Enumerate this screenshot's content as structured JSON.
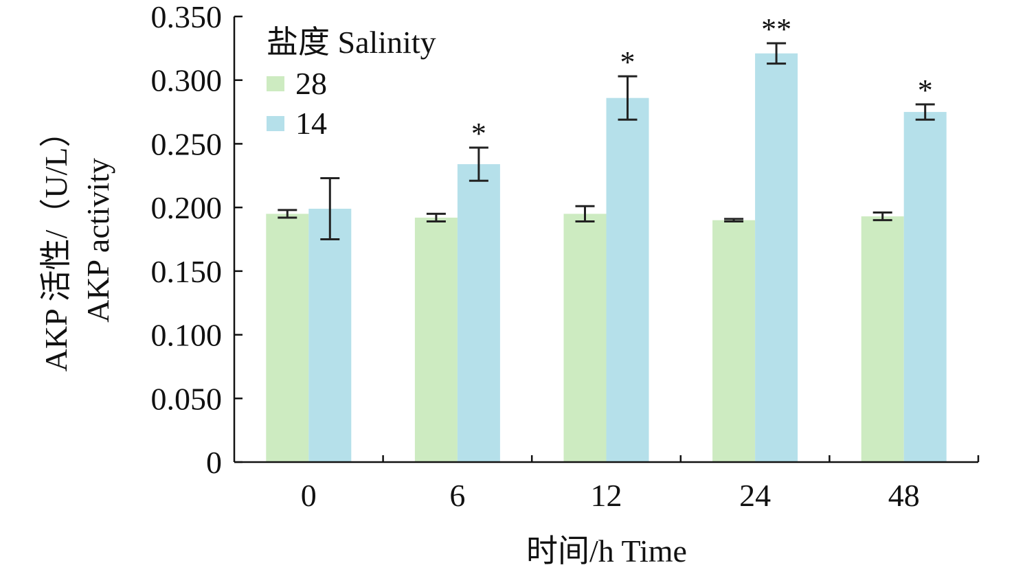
{
  "chart_data": {
    "type": "bar",
    "categories": [
      "0",
      "6",
      "12",
      "24",
      "48"
    ],
    "series": [
      {
        "name": "28",
        "values": [
          0.195,
          0.192,
          0.195,
          0.19,
          0.193
        ],
        "errors": [
          0.003,
          0.003,
          0.006,
          0.001,
          0.003
        ],
        "color": "#cdebc1"
      },
      {
        "name": "14",
        "values": [
          0.199,
          0.234,
          0.286,
          0.321,
          0.275
        ],
        "errors": [
          0.024,
          0.013,
          0.017,
          0.008,
          0.006
        ],
        "color": "#b5e0ea"
      }
    ],
    "significance": [
      "",
      "*",
      "*",
      "**",
      "*"
    ],
    "legend_title": "盐度 Salinity",
    "legend_position": "top-left",
    "xlabel": "时间/h Time",
    "ylabel": [
      "AKP 活性/（U/L）",
      "AKP activity"
    ],
    "ylim": [
      0,
      0.35
    ],
    "yticks": [
      "0",
      "0.050",
      "0.100",
      "0.150",
      "0.200",
      "0.250",
      "0.300",
      "0.350"
    ],
    "grid": false
  }
}
